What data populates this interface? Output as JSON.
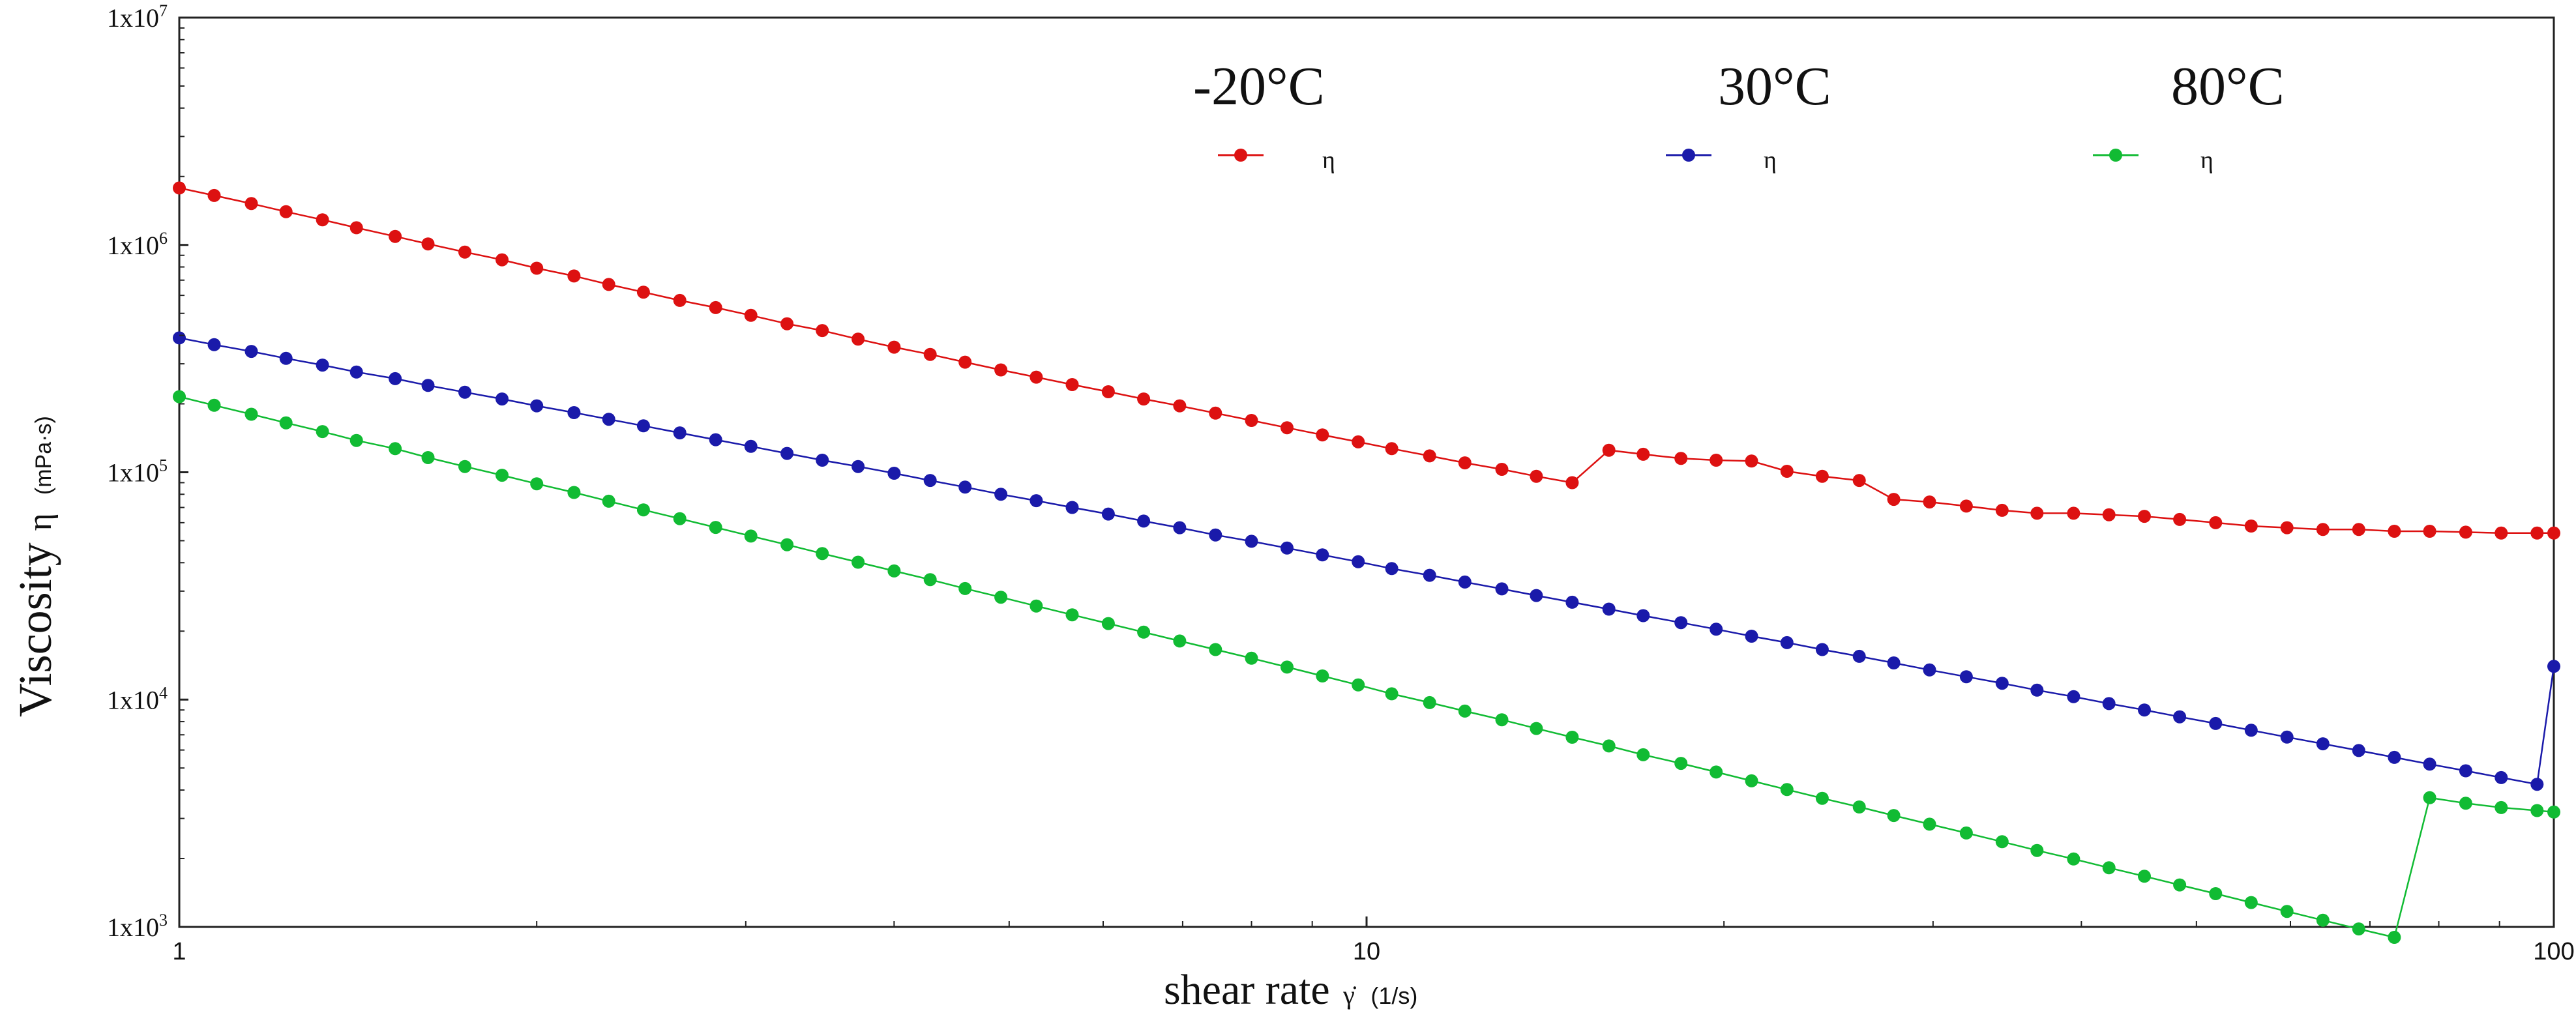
{
  "chart_data": {
    "type": "line",
    "x_scale": "log",
    "y_scale": "log",
    "xlim": [
      1,
      100
    ],
    "ylim": [
      1000,
      10000000
    ],
    "x_ticks": [
      "1",
      "10",
      "100"
    ],
    "y_ticks": [
      {
        "base": "1x10",
        "exp": "3"
      },
      {
        "base": "1x10",
        "exp": "4"
      },
      {
        "base": "1x10",
        "exp": "5"
      },
      {
        "base": "1x10",
        "exp": "6"
      },
      {
        "base": "1x10",
        "exp": "7"
      }
    ],
    "xlabel": "shear rate",
    "xlabel_symbol": "γ̇",
    "xlabel_unit": "(1/s)",
    "ylabel": "Viscosity",
    "ylabel_symbol": "η",
    "ylabel_unit": "(mPa·s)",
    "legend": [
      {
        "title": "-20°C",
        "label": "η",
        "color": "#dd1111"
      },
      {
        "title": "30°C",
        "label": "η",
        "color": "#1a1aaa"
      },
      {
        "title": "80°C",
        "label": "η",
        "color": "#11bb33"
      }
    ],
    "x": [
      1,
      1.07,
      1.15,
      1.23,
      1.32,
      1.41,
      1.52,
      1.62,
      1.74,
      1.87,
      2,
      2.15,
      2.3,
      2.46,
      2.64,
      2.83,
      3.03,
      3.25,
      3.48,
      3.73,
      4,
      4.29,
      4.59,
      4.92,
      5.27,
      5.65,
      6.06,
      6.49,
      6.96,
      7.46,
      8,
      8.57,
      9.18,
      9.84,
      10.5,
      11.3,
      12.1,
      13,
      13.9,
      14.9,
      16,
      17.1,
      18.4,
      19.7,
      21.1,
      22.6,
      24.2,
      26,
      27.8,
      29.8,
      32,
      34.3,
      36.7,
      39.4,
      42.2,
      45.2,
      48.4,
      51.9,
      55.6,
      59.6,
      63.9,
      68.5,
      73.4,
      78.6,
      84.3,
      90.3,
      96.8,
      100
    ],
    "series": [
      {
        "name": "-20°C",
        "color": "#dd1111",
        "x": [
          1,
          1.07,
          1.15,
          1.23,
          1.32,
          1.41,
          1.52,
          1.62,
          1.74,
          1.87,
          2,
          2.15,
          2.3,
          2.46,
          2.64,
          2.83,
          3.03,
          3.25,
          3.48,
          3.73,
          4,
          4.29,
          4.59,
          4.92,
          5.27,
          5.65,
          6.06,
          6.49,
          6.96,
          7.46,
          8,
          8.57,
          9.18,
          9.84,
          10.5,
          11.3,
          12.1,
          13,
          13.9,
          14.9,
          16,
          17.1,
          18.4,
          19.7,
          21.1,
          22.6,
          24.2,
          26,
          27.8,
          29.8,
          32,
          34.3,
          36.7,
          39.4,
          42.2,
          45.2,
          48.4,
          51.9,
          55.6,
          59.6,
          63.9,
          68.5,
          73.4,
          78.6,
          84.3,
          90.3,
          96.8,
          100
        ],
        "values": [
          1780000,
          1650000,
          1520000,
          1400000,
          1290000,
          1190000,
          1090000,
          1010000,
          930000,
          860000,
          790000,
          730000,
          670000,
          620000,
          570000,
          530000,
          490000,
          450000,
          420000,
          385000,
          355000,
          330000,
          305000,
          282000,
          262000,
          243000,
          226000,
          210000,
          196000,
          182000,
          169000,
          157000,
          146000,
          136000,
          127000,
          118000,
          110000,
          103000,
          96000,
          90000,
          125000,
          120000,
          115000,
          113000,
          112000,
          101000,
          96000,
          92000,
          76000,
          74000,
          71000,
          68000,
          66000,
          66000,
          65000,
          64000,
          62000,
          60000,
          58000,
          57000,
          56000,
          56000,
          55000,
          55000,
          54500,
          54000,
          54000,
          54000
        ]
      },
      {
        "name": "30°C",
        "color": "#1a1aaa",
        "x": [
          1,
          1.07,
          1.15,
          1.23,
          1.32,
          1.41,
          1.52,
          1.62,
          1.74,
          1.87,
          2,
          2.15,
          2.3,
          2.46,
          2.64,
          2.83,
          3.03,
          3.25,
          3.48,
          3.73,
          4,
          4.29,
          4.59,
          4.92,
          5.27,
          5.65,
          6.06,
          6.49,
          6.96,
          7.46,
          8,
          8.57,
          9.18,
          9.84,
          10.5,
          11.3,
          12.1,
          13,
          13.9,
          14.9,
          16,
          17.1,
          18.4,
          19.7,
          21.1,
          22.6,
          24.2,
          26,
          27.8,
          29.8,
          32,
          34.3,
          36.7,
          39.4,
          42.2,
          45.2,
          48.4,
          51.9,
          55.6,
          59.6,
          63.9,
          68.5,
          73.4,
          78.6,
          84.3,
          90.3,
          96.8,
          100
        ],
        "values": [
          390000,
          364000,
          340000,
          317000,
          296000,
          276000,
          258000,
          241000,
          225000,
          210000,
          196000,
          183000,
          171000,
          160000,
          149000,
          139000,
          130000,
          121000,
          113000,
          106000,
          99000,
          92000,
          86000,
          80000,
          75000,
          70000,
          65500,
          61000,
          57000,
          53000,
          49700,
          46400,
          43300,
          40400,
          37700,
          35200,
          32900,
          30700,
          28700,
          26800,
          25000,
          23400,
          21800,
          20400,
          19000,
          17800,
          16600,
          15500,
          14500,
          13500,
          12600,
          11800,
          11000,
          10300,
          9600,
          9000,
          8400,
          7850,
          7330,
          6840,
          6390,
          5970,
          5570,
          5200,
          4860,
          4540,
          4240,
          14000
        ]
      },
      {
        "name": "80°C",
        "color": "#11bb33",
        "x": [
          1,
          1.07,
          1.15,
          1.23,
          1.32,
          1.41,
          1.52,
          1.62,
          1.74,
          1.87,
          2,
          2.15,
          2.3,
          2.46,
          2.64,
          2.83,
          3.03,
          3.25,
          3.48,
          3.73,
          4,
          4.29,
          4.59,
          4.92,
          5.27,
          5.65,
          6.06,
          6.49,
          6.96,
          7.46,
          8,
          8.57,
          9.18,
          9.84,
          10.5,
          11.3,
          12.1,
          13,
          13.9,
          14.9,
          16,
          17.1,
          18.4,
          19.7,
          21.1,
          22.6,
          24.2,
          26,
          27.8,
          29.8,
          32,
          34.3,
          36.7,
          39.4,
          42.2,
          45.2,
          48.4,
          51.9,
          55.6,
          59.6,
          63.9,
          68.5,
          73.4,
          78.6,
          84.3,
          90.3,
          96.8,
          100
        ],
        "values": [
          215000,
          197000,
          180000,
          165000,
          151000,
          138000,
          127000,
          116000,
          106000,
          97000,
          89000,
          81500,
          74600,
          68300,
          62500,
          57200,
          52400,
          48000,
          43900,
          40200,
          36800,
          33700,
          30800,
          28200,
          25800,
          23600,
          21600,
          19800,
          18100,
          16600,
          15200,
          13900,
          12700,
          11600,
          10600,
          9700,
          8900,
          8150,
          7460,
          6830,
          6250,
          5720,
          5240,
          4800,
          4390,
          4020,
          3680,
          3370,
          3090,
          2830,
          2590,
          2370,
          2170,
          1990,
          1820,
          1670,
          1530,
          1400,
          1280,
          1170,
          1070,
          980,
          900,
          3700,
          3500,
          3350,
          3250,
          3200
        ]
      }
    ]
  }
}
